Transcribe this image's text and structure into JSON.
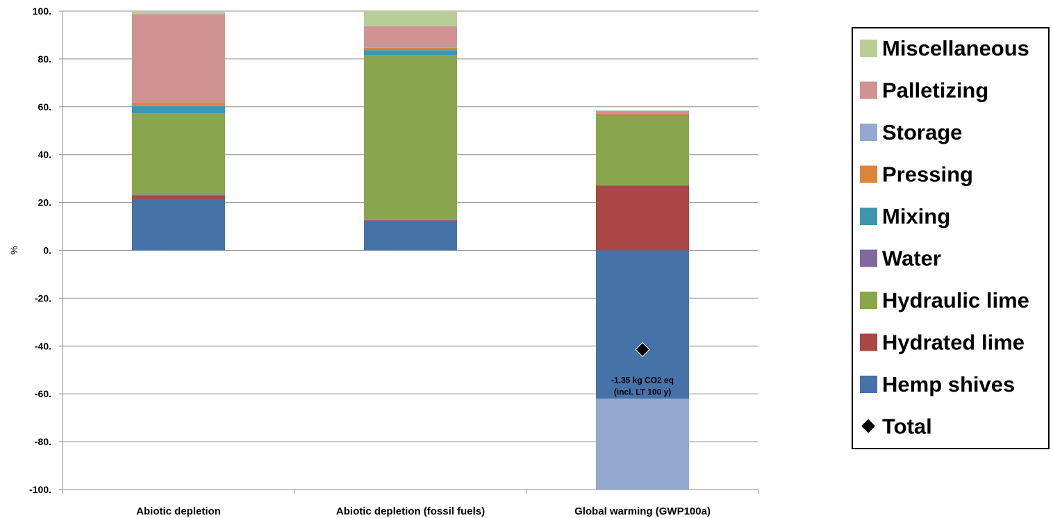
{
  "chart_data": {
    "type": "bar",
    "stacked": true,
    "title": "",
    "xlabel": "",
    "ylabel": "%",
    "ylim": [
      -100,
      100
    ],
    "yticks": [
      100,
      80,
      60,
      40,
      20,
      0,
      -20,
      -40,
      -60,
      -80,
      -100
    ],
    "ytick_labels": [
      "100.",
      "80.",
      "60.",
      "40.",
      "20.",
      "0.",
      "-20.",
      "-40.",
      "-60.",
      "-80.",
      "-100."
    ],
    "grid": true,
    "legend_position": "right",
    "categories": [
      "Abiotic depletion",
      "Abiotic depletion (fossil fuels)",
      "Global warming (GWP100a)"
    ],
    "series": [
      {
        "name": "Hemp shives",
        "color": "#4572A7",
        "values": [
          21.5,
          12,
          -62
        ]
      },
      {
        "name": "Hydrated lime",
        "color": "#AA4643",
        "values": [
          1.5,
          0.5,
          27
        ]
      },
      {
        "name": "Water",
        "color": "#80699B",
        "values": [
          0.3,
          0.2,
          0.2
        ]
      },
      {
        "name": "Hydraulic lime",
        "color": "#89A54E",
        "values": [
          34,
          69,
          29
        ]
      },
      {
        "name": "Mixing",
        "color": "#3D96AE",
        "values": [
          3,
          2,
          0.4
        ]
      },
      {
        "name": "Pressing",
        "color": "#DB843D",
        "values": [
          1.5,
          1,
          0.3
        ]
      },
      {
        "name": "Storage",
        "color": "#93A9CF",
        "values": [
          0,
          0.5,
          -38
        ]
      },
      {
        "name": "Palletizing",
        "color": "#D19392",
        "values": [
          37,
          8.5,
          1.3
        ]
      },
      {
        "name": "Miscellaneous",
        "color": "#B9CD96",
        "values": [
          1.2,
          6.3,
          0.3
        ]
      }
    ],
    "total": {
      "name": "Total",
      "values": [
        null,
        null,
        -41.5
      ]
    },
    "annotation": {
      "category": "Global warming (GWP100a)",
      "lines": [
        "-1.35 kg CO2 eq",
        "(incl. LT 100 y)"
      ]
    },
    "legend_order": [
      "Miscellaneous",
      "Palletizing",
      "Storage",
      "Pressing",
      "Mixing",
      "Water",
      "Hydraulic lime",
      "Hydrated lime",
      "Hemp shives",
      "Total"
    ]
  }
}
